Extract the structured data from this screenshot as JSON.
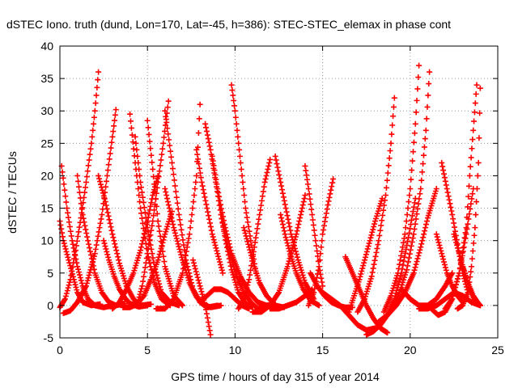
{
  "chart_data": {
    "type": "scatter",
    "title": "dSTEC Iono. truth (dund, Lon=170, Lat=-45, h=386): STEC-STEC_elemax in phase cont",
    "xlabel": "GPS time / hours of day 315 of year 2014",
    "ylabel": "dSTEC  / TECUs",
    "xlim": [
      0,
      25
    ],
    "ylim": [
      -5,
      40
    ],
    "xticks": [
      0,
      5,
      10,
      15,
      20,
      25
    ],
    "yticks": [
      -5,
      0,
      5,
      10,
      15,
      20,
      25,
      30,
      35,
      40
    ],
    "grid": true,
    "legend": "none",
    "marker": "+",
    "color": "#ff0000",
    "series": [
      {
        "x": [
          0.0,
          0.3,
          0.6,
          0.9,
          1.2,
          1.5,
          1.8,
          2.0,
          2.2
        ],
        "y": [
          -0.3,
          1,
          4,
          8.5,
          13.5,
          19,
          25,
          30,
          36
        ]
      },
      {
        "x": [
          0.1,
          0.4,
          0.7,
          1.0,
          1.3,
          1.6,
          2.0,
          2.5,
          3.0
        ],
        "y": [
          21.5,
          15,
          10,
          6,
          3,
          1,
          0,
          -0.3,
          0
        ]
      },
      {
        "x": [
          0.0,
          0.2,
          0.5,
          0.8,
          1.0,
          1.3,
          1.8,
          2.3
        ],
        "y": [
          13,
          10,
          7,
          4,
          2,
          0.5,
          0,
          0.2
        ]
      },
      {
        "x": [
          0.2,
          0.6,
          1.0,
          1.5,
          2.0,
          2.4,
          2.7,
          3.0,
          3.2
        ],
        "y": [
          -1.2,
          -0.8,
          0.5,
          3,
          8,
          14,
          20,
          26,
          30.2
        ]
      },
      {
        "x": [
          1.0,
          1.3,
          1.6,
          2.0,
          2.4,
          2.8,
          3.2,
          3.7
        ],
        "y": [
          20,
          14,
          10,
          5,
          2,
          0.5,
          0,
          0.3
        ]
      },
      {
        "x": [
          2.2,
          2.6,
          3.0,
          3.4,
          3.8,
          4.2,
          4.6,
          5.2
        ],
        "y": [
          20,
          16,
          11,
          6.5,
          3,
          1,
          0,
          0.2
        ]
      },
      {
        "x": [
          2.5,
          2.8,
          3.1,
          3.4,
          3.7,
          4.0,
          4.5,
          5.0
        ],
        "y": [
          10,
          7,
          4.5,
          2.5,
          1.2,
          0.3,
          -0.2,
          0
        ]
      },
      {
        "x": [
          3.0,
          3.4,
          3.8,
          4.2,
          4.6,
          5.0,
          5.3,
          5.6
        ],
        "y": [
          -0.5,
          0.5,
          2.5,
          5,
          8.5,
          13,
          17,
          20
        ]
      },
      {
        "x": [
          4.0,
          4.3,
          4.6,
          5.0,
          5.4,
          5.8,
          6.3
        ],
        "y": [
          29.5,
          22,
          15,
          8,
          3.5,
          1,
          0
        ]
      },
      {
        "x": [
          4.3,
          4.6,
          5.0,
          5.4,
          5.8,
          6.3,
          6.8
        ],
        "y": [
          26,
          19,
          12,
          6,
          2,
          0.5,
          0
        ]
      },
      {
        "x": [
          4.4,
          4.7,
          5.0,
          5.3,
          5.6,
          5.9,
          6.2
        ],
        "y": [
          0,
          3,
          8,
          13,
          19,
          25,
          31.5
        ]
      },
      {
        "x": [
          3.6,
          4.0,
          4.4,
          4.8,
          5.2,
          5.6,
          6.0,
          6.4
        ],
        "y": [
          -0.3,
          -0.3,
          0.2,
          1.5,
          4,
          7,
          11,
          14.5
        ]
      },
      {
        "x": [
          5.0,
          5.3,
          5.6,
          6.0,
          6.5,
          7.0
        ],
        "y": [
          28.5,
          21,
          13,
          6,
          1.5,
          0
        ]
      },
      {
        "x": [
          6.0,
          6.4,
          6.8,
          7.2,
          7.6,
          8.0,
          8.4,
          9.0
        ],
        "y": [
          30,
          22,
          14,
          7,
          2.5,
          0.5,
          -0.3,
          0
        ]
      },
      {
        "x": [
          6.0,
          6.5,
          7.0,
          7.4,
          7.8,
          8.2,
          8.6,
          9.2
        ],
        "y": [
          18,
          12,
          7,
          3.5,
          1.3,
          0.2,
          -0.3,
          0
        ]
      },
      {
        "x": [
          5.5,
          6.0,
          6.5,
          7.0,
          7.4,
          7.8,
          8.0
        ],
        "y": [
          -0.5,
          -0.5,
          1,
          5,
          11,
          20,
          31
        ]
      },
      {
        "x": [
          7.8,
          8.1,
          8.4,
          8.7,
          9.0,
          9.3
        ],
        "y": [
          24,
          19,
          15,
          11,
          8,
          5
        ]
      },
      {
        "x": [
          7.6,
          8.0,
          8.3,
          8.6
        ],
        "y": [
          7,
          3,
          0,
          -4.5
        ]
      },
      {
        "x": [
          8.3,
          8.6,
          8.9,
          9.2,
          9.5,
          9.8,
          10.2,
          10.6,
          11.0
        ],
        "y": [
          28,
          24,
          19,
          14,
          9.5,
          5.5,
          2,
          0.3,
          -0.3
        ]
      },
      {
        "x": [
          8.7,
          9.0,
          9.4,
          9.8,
          10.3,
          10.8,
          11.3,
          11.8,
          12.3
        ],
        "y": [
          23,
          18,
          12.5,
          8,
          4.5,
          2,
          0.5,
          0,
          0.2
        ]
      },
      {
        "x": [
          9.2,
          9.5,
          9.8,
          10.1,
          10.5,
          10.9,
          11.3,
          11.8,
          12.2
        ],
        "y": [
          14,
          10,
          7,
          4.5,
          2,
          0.5,
          -0.5,
          -0.3,
          0.2
        ]
      },
      {
        "x": [
          8.0,
          8.4,
          8.8,
          9.2,
          9.6,
          10.0,
          10.4,
          10.8
        ],
        "y": [
          0.5,
          1.5,
          2.5,
          2.5,
          2,
          1,
          0,
          -0.5
        ]
      },
      {
        "x": [
          9.8,
          10.0,
          10.2,
          10.4,
          10.6,
          10.9,
          11.2
        ],
        "y": [
          34,
          30,
          25,
          20,
          15,
          10,
          5
        ]
      },
      {
        "x": [
          10.2,
          10.5,
          10.8,
          11.1,
          11.4,
          11.7,
          12.0
        ],
        "y": [
          -0.5,
          1,
          4,
          9,
          14,
          19,
          22.5
        ]
      },
      {
        "x": [
          10.5,
          10.8,
          11.1,
          11.4,
          11.8,
          12.3,
          12.8
        ],
        "y": [
          12,
          9,
          6,
          3.5,
          1.5,
          0,
          -0.3
        ]
      },
      {
        "x": [
          11.0,
          11.5,
          12.0,
          12.5,
          13.0,
          13.5,
          14.0
        ],
        "y": [
          -1,
          -1,
          0,
          2,
          6,
          11,
          17
        ]
      },
      {
        "x": [
          12.3,
          12.6,
          12.9,
          13.2,
          13.6,
          14.0,
          14.5
        ],
        "y": [
          23,
          19,
          15,
          11,
          7,
          3.5,
          1
        ]
      },
      {
        "x": [
          12.6,
          12.9,
          13.2,
          13.5,
          13.9,
          14.3,
          14.8
        ],
        "y": [
          14,
          10.5,
          7.5,
          5,
          2.5,
          0.8,
          0
        ]
      },
      {
        "x": [
          12.0,
          12.5,
          13.0,
          13.5,
          14.0,
          14.4
        ],
        "y": [
          -0.5,
          -0.5,
          0,
          0.5,
          1.5,
          2.5
        ]
      },
      {
        "x": [
          14.0,
          14.2,
          14.4,
          14.6,
          14.8,
          15.0
        ],
        "y": [
          21.5,
          18,
          14,
          10,
          6,
          3
        ]
      },
      {
        "x": [
          14.2,
          14.5,
          14.8,
          15.0,
          15.3,
          15.6
        ],
        "y": [
          0,
          2,
          6,
          11,
          15.5,
          19.5
        ]
      },
      {
        "x": [
          14.3,
          14.7,
          15.1,
          15.5,
          15.9,
          16.3,
          16.7
        ],
        "y": [
          5,
          3,
          1.5,
          0.5,
          0,
          -0.3,
          -0.3
        ]
      },
      {
        "x": [
          15.0,
          15.5,
          16.0,
          16.5,
          17.0,
          17.5,
          18.0
        ],
        "y": [
          2,
          1,
          0,
          -1.5,
          -3,
          -3.8,
          -3.5
        ]
      },
      {
        "x": [
          16.3,
          16.7,
          17.1,
          17.5,
          17.9,
          18.3,
          18.7
        ],
        "y": [
          7.5,
          5,
          2.5,
          0,
          -2,
          -3.5,
          -4.2
        ]
      },
      {
        "x": [
          16.5,
          16.8,
          17.1,
          17.4,
          17.7,
          18.0,
          18.4
        ],
        "y": [
          -1,
          1.5,
          4,
          7,
          10,
          13,
          16.5
        ]
      },
      {
        "x": [
          17.5,
          17.9,
          18.3,
          18.7,
          19.1,
          19.5,
          19.9,
          20.3
        ],
        "y": [
          -4.5,
          -4,
          -3,
          -1.5,
          1,
          5,
          10.5,
          16.5
        ]
      },
      {
        "x": [
          17.0,
          17.4,
          17.8,
          18.2,
          18.6,
          18.9,
          19.1
        ],
        "y": [
          -1,
          1,
          4.5,
          10,
          17,
          25,
          32
        ]
      },
      {
        "x": [
          18.2,
          18.7,
          19.2,
          19.7,
          20.2,
          20.6,
          21.0,
          21.5
        ],
        "y": [
          -2.5,
          -1.5,
          0,
          2,
          5,
          9,
          13.5,
          18
        ]
      },
      {
        "x": [
          18.5,
          18.9,
          19.3,
          19.7,
          20.0,
          20.3,
          20.5
        ],
        "y": [
          -1,
          1.5,
          5,
          11,
          18,
          28,
          37
        ]
      },
      {
        "x": [
          19.0,
          19.4,
          19.8,
          20.2,
          20.6,
          20.9,
          21.1
        ],
        "y": [
          0,
          2,
          5.5,
          11,
          18,
          27,
          36
        ]
      },
      {
        "x": [
          19.5,
          20.0,
          20.5,
          21.0,
          21.5,
          22.0,
          22.4
        ],
        "y": [
          2.5,
          1,
          0,
          0,
          1,
          3,
          5
        ]
      },
      {
        "x": [
          21.5,
          21.8,
          22.1,
          22.4,
          22.7,
          23.0
        ],
        "y": [
          11,
          8,
          5,
          3,
          1.5,
          0.5
        ]
      },
      {
        "x": [
          21.8,
          22.1,
          22.4,
          22.7,
          23.0,
          23.3
        ],
        "y": [
          22,
          18,
          14,
          9.5,
          5,
          2
        ]
      },
      {
        "x": [
          21.2,
          21.6,
          22.0,
          22.4,
          22.8,
          23.2,
          23.6
        ],
        "y": [
          -0.5,
          -1.5,
          -1,
          1,
          5,
          11,
          18
        ]
      },
      {
        "x": [
          22.0,
          22.4,
          22.8,
          23.2,
          23.4,
          23.6,
          23.8
        ],
        "y": [
          -0.5,
          1,
          5,
          12,
          20,
          27,
          34
        ]
      },
      {
        "x": [
          22.5,
          22.8,
          23.1,
          23.4,
          23.7,
          24.0
        ],
        "y": [
          11,
          8,
          5,
          2.5,
          0.7,
          0
        ]
      },
      {
        "x": [
          22.7,
          23.0,
          23.3,
          23.5,
          23.7,
          23.9,
          24.0
        ],
        "y": [
          -0.5,
          0,
          2,
          6,
          12,
          22,
          33.5
        ]
      },
      {
        "x": [
          23.0,
          23.3,
          23.6,
          23.9,
          24.0
        ],
        "y": [
          6,
          3.5,
          1.5,
          0.3,
          0
        ]
      },
      {
        "x": [
          20.5,
          21.0,
          21.5,
          22.0,
          22.5,
          23.0,
          23.5,
          24.0
        ],
        "y": [
          -0.5,
          -0.5,
          0,
          1,
          2,
          1.5,
          0.5,
          0
        ]
      }
    ]
  }
}
